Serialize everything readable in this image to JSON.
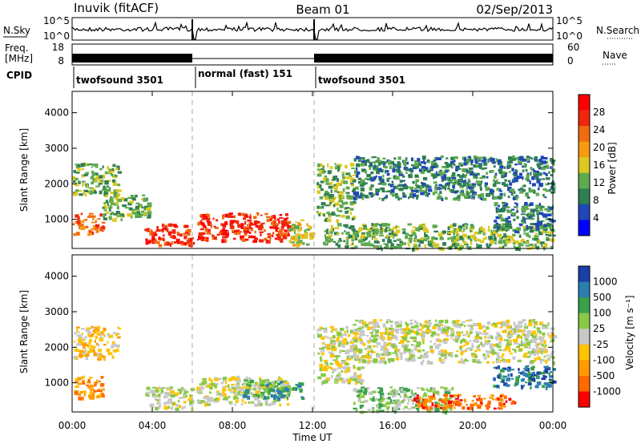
{
  "header": {
    "station": "Inuvik (fitACF)",
    "beam": "Beam 01",
    "date": "02/Sep/2013"
  },
  "top_panels": {
    "nsky_label": "N.Sky",
    "nsky_ticks": [
      "10^5",
      "10^0"
    ],
    "nsearch_label": "N.Search",
    "nsearch_ticks": [
      "10^5",
      "10^0"
    ],
    "freq_label": "Freq.",
    "freq_unit": "[MHz]",
    "freq_ticks": [
      "18",
      "8"
    ],
    "nave_label": "Nave",
    "nave_ticks": [
      "60",
      "0"
    ],
    "cpid_label": "CPID",
    "cpid_segments": [
      {
        "label": "twofsound 3501",
        "start_h": 0,
        "end_h": 6
      },
      {
        "label": "normal (fast) 151",
        "start_h": 6,
        "end_h": 12
      },
      {
        "label": "twofsound 3501",
        "start_h": 12,
        "end_h": 24
      }
    ]
  },
  "colors": {
    "power_scale": [
      "#0000ff",
      "#1f47b8",
      "#2f7f52",
      "#5faa4f",
      "#dcc821",
      "#f59a12",
      "#f06b10",
      "#f0260d",
      "#ff0000"
    ],
    "velocity_scale": [
      "#ff0000",
      "#ff6a00",
      "#ff9a00",
      "#ffc400",
      "#c8c8c8",
      "#88c948",
      "#37a24a",
      "#2b7fb0",
      "#1a3fa7"
    ],
    "ground_scatter": "#c8c8c8"
  },
  "chart_data": [
    {
      "type": "heatmap",
      "name": "power",
      "ylabel": "Slant Range [km]",
      "xlim": [
        0,
        24
      ],
      "ylim": [
        180,
        4600
      ],
      "y_ticks": [
        1000,
        2000,
        3000,
        4000
      ],
      "x_ticks": [
        "00:00",
        "04:00",
        "08:00",
        "12:00",
        "16:00",
        "20:00",
        "00:00"
      ],
      "colorbar_label": "Power [dB]",
      "colorbar_ticks": [
        "28",
        "24",
        "20",
        "16",
        "12",
        "8",
        "4"
      ],
      "colorbar_range": [
        0,
        30
      ],
      "regions": [
        {
          "t0": 0.0,
          "t1": 1.5,
          "r0": 600,
          "r1": 1200,
          "level": 22
        },
        {
          "t0": 0.0,
          "t1": 2.3,
          "r0": 1700,
          "r1": 2600,
          "level": 10
        },
        {
          "t0": 1.5,
          "t1": 3.8,
          "r0": 1000,
          "r1": 1700,
          "level": 12
        },
        {
          "t0": 3.6,
          "t1": 6.0,
          "r0": 300,
          "r1": 900,
          "level": 28
        },
        {
          "t0": 6.2,
          "t1": 10.8,
          "r0": 400,
          "r1": 1200,
          "level": 28
        },
        {
          "t0": 10.8,
          "t1": 12.0,
          "r0": 300,
          "r1": 1000,
          "level": 14
        },
        {
          "t0": 12.2,
          "t1": 14.0,
          "r0": 1000,
          "r1": 2600,
          "level": 10
        },
        {
          "t0": 14.0,
          "t1": 24.0,
          "r0": 1600,
          "r1": 2800,
          "level": 7
        },
        {
          "t0": 12.5,
          "t1": 24.0,
          "r0": 200,
          "r1": 900,
          "level": 13
        },
        {
          "t0": 21.0,
          "t1": 24.0,
          "r0": 700,
          "r1": 1500,
          "level": 9
        }
      ]
    },
    {
      "type": "heatmap",
      "name": "velocity",
      "ylabel": "Slant Range [km]",
      "xlabel": "Time UT",
      "xlim": [
        0,
        24
      ],
      "ylim": [
        180,
        4600
      ],
      "y_ticks": [
        1000,
        2000,
        3000,
        4000
      ],
      "x_ticks": [
        "00:00",
        "04:00",
        "08:00",
        "12:00",
        "16:00",
        "20:00",
        "00:00"
      ],
      "colorbar_label": "Velocity [m s⁻¹]",
      "colorbar_ticks": [
        "1000",
        "500",
        "100",
        "25",
        "-25",
        "-100",
        "-500",
        "-1000"
      ],
      "regions": [
        {
          "t0": 0.0,
          "t1": 1.5,
          "r0": 600,
          "r1": 1200,
          "level": 2
        },
        {
          "t0": 0.0,
          "t1": 2.3,
          "r0": 1700,
          "r1": 2600,
          "level": 3
        },
        {
          "t0": 3.6,
          "t1": 6.0,
          "r0": 300,
          "r1": 900,
          "level": 4
        },
        {
          "t0": 6.2,
          "t1": 10.8,
          "r0": 400,
          "r1": 1200,
          "level": 4
        },
        {
          "t0": 8.5,
          "t1": 11.5,
          "r0": 600,
          "r1": 1100,
          "level": 6
        },
        {
          "t0": 12.2,
          "t1": 14.5,
          "r0": 1000,
          "r1": 2600,
          "level": 4
        },
        {
          "t0": 14.0,
          "t1": 24.0,
          "r0": 1600,
          "r1": 2800,
          "level": 4
        },
        {
          "t0": 14.0,
          "t1": 19.0,
          "r0": 200,
          "r1": 900,
          "level": 5
        },
        {
          "t0": 17.0,
          "t1": 22.0,
          "r0": 300,
          "r1": 700,
          "level": 1
        },
        {
          "t0": 21.0,
          "t1": 24.0,
          "r0": 900,
          "r1": 1500,
          "level": 7
        }
      ]
    }
  ]
}
